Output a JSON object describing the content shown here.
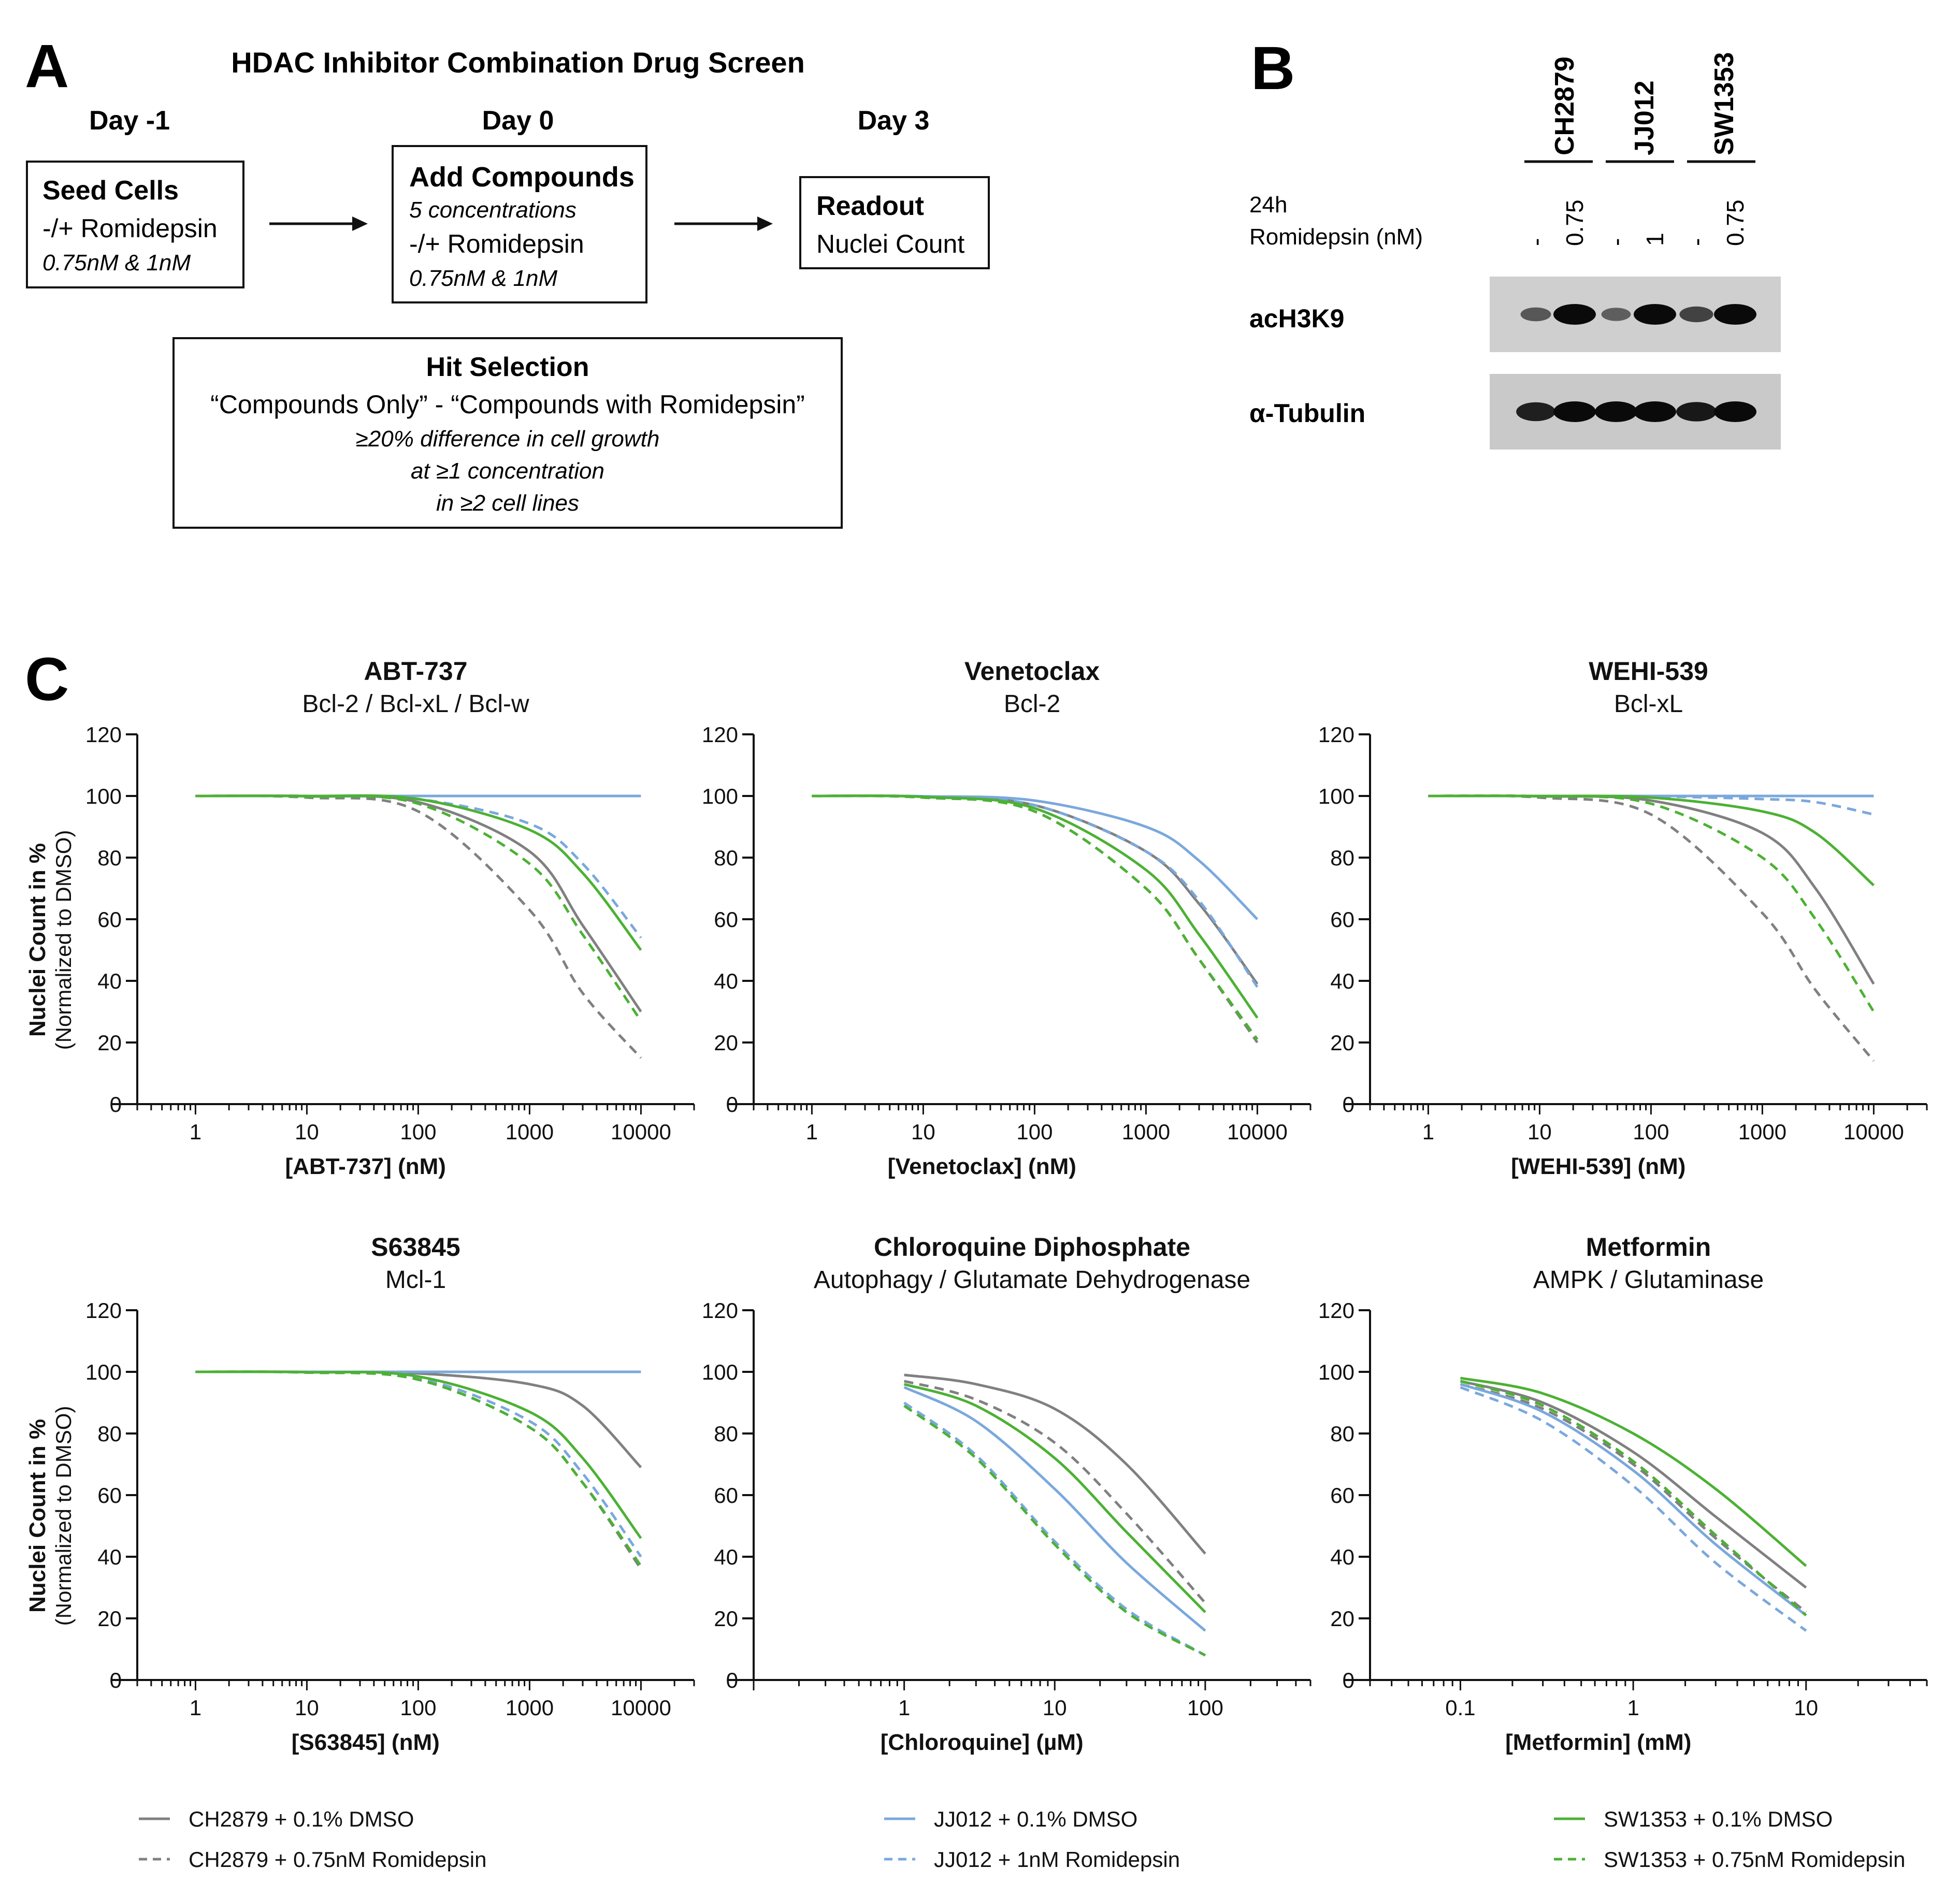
{
  "colors": {
    "ch2879": "#808080",
    "jj012": "#7aa8dc",
    "sw1353": "#4cb134",
    "text": "#111111",
    "band": "#111111"
  },
  "panel_a": {
    "letter": "A",
    "title": "HDAC Inhibitor Combination Drug Screen",
    "steps": [
      {
        "day": "Day -1",
        "box_title": "Seed Cells",
        "lines": [
          "-/+ Romidepsin",
          "0.75nM & 1nM"
        ]
      },
      {
        "day": "Day 0",
        "box_title": "Add Compounds",
        "lines": [
          "5 concentrations",
          "-/+ Romidepsin",
          "0.75nM & 1nM"
        ]
      },
      {
        "day": "Day 3",
        "box_title": "Readout",
        "lines": [
          "Nuclei Count"
        ]
      }
    ],
    "hit_selection": {
      "title": "Hit Selection",
      "formula": "“Compounds Only” - “Compounds with Romidepsin”",
      "criteria": [
        "≥20% difference in cell growth",
        "at ≥1 concentration",
        "in ≥2 cell lines"
      ]
    }
  },
  "panel_b": {
    "letter": "B",
    "cell_lines": [
      "CH2879",
      "JJ012",
      "SW1353"
    ],
    "condition_label_1": "24h",
    "condition_label_2": "Romidepsin (nM)",
    "lanes": [
      "-",
      "0.75",
      "-",
      "1",
      "-",
      "0.75"
    ],
    "blots": [
      {
        "name": "acH3K9",
        "intensities": [
          0.45,
          1.0,
          0.4,
          1.0,
          0.6,
          1.0
        ]
      },
      {
        "name": "α-Tubulin",
        "intensities": [
          0.85,
          1.0,
          1.0,
          1.0,
          0.9,
          1.0
        ]
      }
    ]
  },
  "panel_c": {
    "letter": "C"
  },
  "legend": [
    {
      "label": "CH2879 + 0.1% DMSO",
      "color": "#808080",
      "dash": false
    },
    {
      "label": "CH2879 + 0.75nM Romidepsin",
      "color": "#808080",
      "dash": true
    },
    {
      "label": "JJ012 + 0.1% DMSO",
      "color": "#7aa8dc",
      "dash": false
    },
    {
      "label": "JJ012 + 1nM Romidepsin",
      "color": "#7aa8dc",
      "dash": true
    },
    {
      "label": "SW1353 + 0.1% DMSO",
      "color": "#4cb134",
      "dash": false
    },
    {
      "label": "SW1353 + 0.75nM Romidepsin",
      "color": "#4cb134",
      "dash": true
    }
  ],
  "chart_data": [
    {
      "type": "line",
      "title": "ABT-737",
      "subtitle": "Bcl-2 / Bcl-xL / Bcl-w",
      "xlabel": "[ABT-737] (nM)",
      "ylabel": "Nuclei Count in %",
      "ylabel2": "(Normalized to DMSO)",
      "xscale": "log",
      "xlim": [
        0.3,
        30000
      ],
      "ylim": [
        0,
        120
      ],
      "xticks": [
        1,
        10,
        100,
        1000,
        10000
      ],
      "xticklabels": [
        "1",
        "10",
        "100",
        "1000",
        "10000"
      ],
      "yticks": [
        0,
        20,
        40,
        60,
        80,
        100,
        120
      ],
      "series": [
        {
          "name": "CH2879 + 0.1% DMSO",
          "x": [
            1,
            10,
            100,
            1000,
            3000,
            10000
          ],
          "y": [
            100,
            99.9,
            98,
            82,
            58,
            30
          ]
        },
        {
          "name": "CH2879 + 0.75nM Romidepsin",
          "x": [
            1,
            10,
            100,
            1000,
            3000,
            10000
          ],
          "y": [
            100,
            99.5,
            95,
            63,
            36,
            15
          ]
        },
        {
          "name": "JJ012 + 0.1% DMSO",
          "x": [
            1,
            10,
            100,
            1000,
            10000
          ],
          "y": [
            100,
            100,
            100,
            100,
            100
          ]
        },
        {
          "name": "JJ012 + 1nM Romidepsin",
          "x": [
            1,
            10,
            100,
            1000,
            3000,
            10000
          ],
          "y": [
            100,
            100,
            99,
            91,
            78,
            54
          ]
        },
        {
          "name": "SW1353 + 0.1% DMSO",
          "x": [
            1,
            10,
            100,
            1000,
            3000,
            10000
          ],
          "y": [
            100,
            100,
            99,
            89,
            75,
            50
          ]
        },
        {
          "name": "SW1353 + 0.75nM Romidepsin",
          "x": [
            1,
            10,
            100,
            1000,
            3000,
            10000
          ],
          "y": [
            100,
            99.8,
            97.5,
            78,
            55,
            27
          ]
        }
      ]
    },
    {
      "type": "line",
      "title": "Venetoclax",
      "subtitle": "Bcl-2",
      "xlabel": "[Venetoclax] (nM)",
      "ylabel": "",
      "ylabel2": "",
      "xscale": "log",
      "xlim": [
        0.3,
        30000
      ],
      "ylim": [
        0,
        120
      ],
      "xticks": [
        1,
        10,
        100,
        1000,
        10000
      ],
      "xticklabels": [
        "1",
        "10",
        "100",
        "1000",
        "10000"
      ],
      "yticks": [
        0,
        20,
        40,
        60,
        80,
        100,
        120
      ],
      "series": [
        {
          "name": "CH2879 + 0.1% DMSO",
          "x": [
            1,
            10,
            100,
            1000,
            3000,
            10000
          ],
          "y": [
            100,
            99.8,
            97,
            82,
            65,
            39
          ]
        },
        {
          "name": "CH2879 + 0.75nM Romidepsin",
          "x": [
            1,
            10,
            100,
            1000,
            3000,
            10000
          ],
          "y": [
            100,
            99.5,
            95,
            70,
            47,
            20
          ]
        },
        {
          "name": "JJ012 + 0.1% DMSO",
          "x": [
            1,
            10,
            100,
            1000,
            3000,
            10000
          ],
          "y": [
            100,
            99.9,
            98.5,
            90,
            79,
            60
          ]
        },
        {
          "name": "JJ012 + 1nM Romidepsin",
          "x": [
            1,
            10,
            100,
            1000,
            3000,
            10000
          ],
          "y": [
            100,
            99.8,
            97,
            82,
            66,
            38
          ]
        },
        {
          "name": "SW1353 + 0.1% DMSO",
          "x": [
            1,
            10,
            100,
            1000,
            3000,
            10000
          ],
          "y": [
            100,
            99.7,
            96,
            76,
            55,
            28
          ]
        },
        {
          "name": "SW1353 + 0.75nM Romidepsin",
          "x": [
            1,
            10,
            100,
            1000,
            3000,
            10000
          ],
          "y": [
            100,
            99.5,
            95,
            70,
            47,
            21
          ]
        }
      ]
    },
    {
      "type": "line",
      "title": "WEHI-539",
      "subtitle": "Bcl-xL",
      "xlabel": "[WEHI-539] (nM)",
      "ylabel": "",
      "ylabel2": "",
      "xscale": "log",
      "xlim": [
        0.3,
        30000
      ],
      "ylim": [
        0,
        120
      ],
      "xticks": [
        1,
        10,
        100,
        1000,
        10000
      ],
      "xticklabels": [
        "1",
        "10",
        "100",
        "1000",
        "10000"
      ],
      "yticks": [
        0,
        20,
        40,
        60,
        80,
        100,
        120
      ],
      "series": [
        {
          "name": "CH2879 + 0.1% DMSO",
          "x": [
            1,
            10,
            100,
            1000,
            3000,
            10000
          ],
          "y": [
            100,
            99.9,
            98.5,
            88,
            70,
            39
          ]
        },
        {
          "name": "CH2879 + 0.75nM Romidepsin",
          "x": [
            1,
            10,
            100,
            1000,
            3000,
            10000
          ],
          "y": [
            100,
            99.5,
            94,
            62,
            37,
            14
          ]
        },
        {
          "name": "JJ012 + 0.1% DMSO",
          "x": [
            1,
            10,
            100,
            1000,
            10000
          ],
          "y": [
            100,
            100,
            100,
            100,
            100
          ]
        },
        {
          "name": "JJ012 + 1nM Romidepsin",
          "x": [
            1,
            10,
            100,
            1000,
            3000,
            10000
          ],
          "y": [
            100,
            100,
            99.9,
            99,
            98,
            94
          ]
        },
        {
          "name": "SW1353 + 0.1% DMSO",
          "x": [
            1,
            10,
            100,
            1000,
            3000,
            10000
          ],
          "y": [
            100,
            100,
            99.5,
            95,
            88,
            71
          ]
        },
        {
          "name": "SW1353 + 0.75nM Romidepsin",
          "x": [
            1,
            10,
            100,
            1000,
            3000,
            10000
          ],
          "y": [
            100,
            99.9,
            97.5,
            80,
            60,
            30
          ]
        }
      ]
    },
    {
      "type": "line",
      "title": "S63845",
      "subtitle": "Mcl-1",
      "xlabel": "[S63845] (nM)",
      "ylabel": "Nuclei Count in %",
      "ylabel2": "(Normalized to DMSO)",
      "xscale": "log",
      "xlim": [
        0.3,
        30000
      ],
      "ylim": [
        0,
        120
      ],
      "xticks": [
        1,
        10,
        100,
        1000,
        10000
      ],
      "xticklabels": [
        "1",
        "10",
        "100",
        "1000",
        "10000"
      ],
      "yticks": [
        0,
        20,
        40,
        60,
        80,
        100,
        120
      ],
      "series": [
        {
          "name": "CH2879 + 0.1% DMSO",
          "x": [
            1,
            10,
            100,
            1000,
            3000,
            10000
          ],
          "y": [
            100,
            100,
            99.5,
            96,
            89,
            69
          ]
        },
        {
          "name": "CH2879 + 0.75nM Romidepsin",
          "x": [
            1,
            10,
            100,
            1000,
            3000,
            10000
          ],
          "y": [
            100,
            99.8,
            97.5,
            82,
            64,
            36
          ]
        },
        {
          "name": "JJ012 + 0.1% DMSO",
          "x": [
            1,
            10,
            100,
            1000,
            10000
          ],
          "y": [
            100,
            100,
            100,
            100,
            100
          ]
        },
        {
          "name": "JJ012 + 1nM Romidepsin",
          "x": [
            1,
            10,
            100,
            1000,
            3000,
            10000
          ],
          "y": [
            100,
            99.8,
            98,
            84,
            67,
            40
          ]
        },
        {
          "name": "SW1353 + 0.1% DMSO",
          "x": [
            1,
            10,
            100,
            1000,
            3000,
            10000
          ],
          "y": [
            100,
            99.9,
            98.5,
            87,
            72,
            46
          ]
        },
        {
          "name": "SW1353 + 0.75nM Romidepsin",
          "x": [
            1,
            10,
            100,
            1000,
            3000,
            10000
          ],
          "y": [
            100,
            99.8,
            97.5,
            82,
            64,
            37
          ]
        }
      ]
    },
    {
      "type": "line",
      "title": "Chloroquine Diphosphate",
      "subtitle": "Autophagy / Glutamate Dehydrogenase",
      "xlabel": "[Chloroquine] (µM)",
      "ylabel": "",
      "ylabel2": "",
      "xscale": "log",
      "xlim": [
        0.1,
        500
      ],
      "ylim": [
        0,
        120
      ],
      "xticks": [
        1,
        10,
        100
      ],
      "xticklabels": [
        "1",
        "10",
        "100"
      ],
      "yticks": [
        0,
        20,
        40,
        60,
        80,
        100,
        120
      ],
      "series": [
        {
          "name": "CH2879 + 0.1% DMSO",
          "x": [
            1,
            3,
            10,
            30,
            100
          ],
          "y": [
            99,
            96,
            88,
            70,
            41
          ]
        },
        {
          "name": "CH2879 + 0.75nM Romidepsin",
          "x": [
            1,
            3,
            10,
            30,
            100
          ],
          "y": [
            97,
            91,
            77,
            54,
            25
          ]
        },
        {
          "name": "JJ012 + 0.1% DMSO",
          "x": [
            1,
            3,
            10,
            30,
            100
          ],
          "y": [
            95,
            84,
            62,
            38,
            16
          ]
        },
        {
          "name": "JJ012 + 1nM Romidepsin",
          "x": [
            1,
            3,
            10,
            30,
            100
          ],
          "y": [
            90,
            73,
            45,
            23,
            8
          ]
        },
        {
          "name": "SW1353 + 0.1% DMSO",
          "x": [
            1,
            3,
            10,
            30,
            100
          ],
          "y": [
            96,
            89,
            72,
            48,
            22
          ]
        },
        {
          "name": "SW1353 + 0.75nM Romidepsin",
          "x": [
            1,
            3,
            10,
            30,
            100
          ],
          "y": [
            89,
            72,
            44,
            22,
            8
          ]
        }
      ]
    },
    {
      "type": "line",
      "title": "Metformin",
      "subtitle": "AMPK / Glutaminase",
      "xlabel": "[Metformin] (mM)",
      "ylabel": "",
      "ylabel2": "",
      "xscale": "log",
      "xlim": [
        0.03,
        50
      ],
      "ylim": [
        0,
        120
      ],
      "xticks": [
        0.1,
        1,
        10
      ],
      "xticklabels": [
        "0.1",
        "1",
        "10"
      ],
      "yticks": [
        0,
        20,
        40,
        60,
        80,
        100,
        120
      ],
      "series": [
        {
          "name": "CH2879 + 0.1% DMSO",
          "x": [
            0.1,
            0.3,
            1,
            3,
            10
          ],
          "y": [
            97,
            90,
            74,
            53,
            30
          ]
        },
        {
          "name": "CH2879 + 0.75nM Romidepsin",
          "x": [
            0.1,
            0.3,
            1,
            3,
            10
          ],
          "y": [
            96,
            88,
            70,
            46,
            22
          ]
        },
        {
          "name": "JJ012 + 0.1% DMSO",
          "x": [
            0.1,
            0.3,
            1,
            3,
            10
          ],
          "y": [
            96,
            87,
            68,
            44,
            21
          ]
        },
        {
          "name": "JJ012 + 1nM Romidepsin",
          "x": [
            0.1,
            0.3,
            1,
            3,
            10
          ],
          "y": [
            95,
            84,
            63,
            38,
            16
          ]
        },
        {
          "name": "SW1353 + 0.1% DMSO",
          "x": [
            0.1,
            0.3,
            1,
            3,
            10
          ],
          "y": [
            98,
            93,
            80,
            62,
            37
          ]
        },
        {
          "name": "SW1353 + 0.75nM Romidepsin",
          "x": [
            0.1,
            0.3,
            1,
            3,
            10
          ],
          "y": [
            97,
            89,
            71,
            47,
            21
          ]
        }
      ]
    }
  ]
}
